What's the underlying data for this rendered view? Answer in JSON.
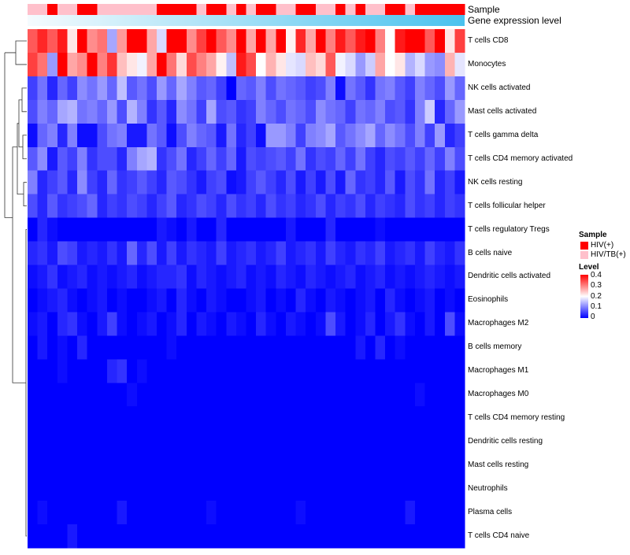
{
  "chart_data": {
    "type": "heatmap",
    "annotations": [
      {
        "label": "Sample"
      },
      {
        "label": "Gene expression level"
      }
    ],
    "rows": [
      "T cells CD8",
      "Monocytes",
      "NK cells activated",
      "Mast cells activated",
      "T cells gamma delta",
      "T cells CD4 memory activated",
      "NK cells resting",
      "T cells follicular helper",
      "T cells regulatory  Tregs",
      "B cells naive",
      "Dendritic cells activated",
      "Eosinophils",
      "Macrophages M2",
      "B cells memory",
      "Macrophages M1",
      "Macrophages M0",
      "T cells CD4 memory resting",
      "Dendritic cells resting",
      "Mast cells resting",
      "Neutrophils",
      "Plasma cells",
      "T cells CD4 naive"
    ],
    "sample_groups": [
      "HIV/TB(+)",
      "HIV/TB(+)",
      "HIV(+)",
      "HIV/TB(+)",
      "HIV/TB(+)",
      "HIV(+)",
      "HIV(+)",
      "HIV/TB(+)",
      "HIV/TB(+)",
      "HIV/TB(+)",
      "HIV/TB(+)",
      "HIV/TB(+)",
      "HIV/TB(+)",
      "HIV(+)",
      "HIV(+)",
      "HIV(+)",
      "HIV(+)",
      "HIV/TB(+)",
      "HIV(+)",
      "HIV(+)",
      "HIV/TB(+)",
      "HIV(+)",
      "HIV/TB(+)",
      "HIV(+)",
      "HIV(+)",
      "HIV/TB(+)",
      "HIV/TB(+)",
      "HIV(+)",
      "HIV(+)",
      "HIV/TB(+)",
      "HIV/TB(+)",
      "HIV(+)",
      "HIV/TB(+)",
      "HIV(+)",
      "HIV/TB(+)",
      "HIV/TB(+)",
      "HIV(+)",
      "HIV(+)",
      "HIV/TB(+)",
      "HIV(+)",
      "HIV(+)",
      "HIV(+)",
      "HIV(+)",
      "HIV(+)"
    ],
    "values": [
      [
        0.33,
        0.37,
        0.33,
        0.38,
        0.22,
        0.42,
        0.29,
        0.31,
        0.13,
        0.28,
        0.4,
        0.4,
        0.27,
        0.17,
        0.4,
        0.43,
        0.29,
        0.35,
        0.42,
        0.33,
        0.29,
        0.41,
        0.27,
        0.4,
        0.27,
        0.44,
        0.21,
        0.37,
        0.27,
        0.4,
        0.3,
        0.38,
        0.33,
        0.38,
        0.43,
        0.3,
        0.2,
        0.38,
        0.44,
        0.4,
        0.33,
        0.4,
        0.22,
        0.35
      ],
      [
        0.35,
        0.31,
        0.12,
        0.43,
        0.27,
        0.29,
        0.42,
        0.3,
        0.36,
        0.25,
        0.22,
        0.19,
        0.27,
        0.4,
        0.31,
        0.23,
        0.34,
        0.3,
        0.27,
        0.21,
        0.15,
        0.38,
        0.34,
        0.2,
        0.26,
        0.22,
        0.18,
        0.17,
        0.25,
        0.23,
        0.33,
        0.19,
        0.17,
        0.12,
        0.16,
        0.27,
        0.2,
        0.22,
        0.14,
        0.17,
        0.12,
        0.11,
        0.26,
        0.18
      ],
      [
        0.05,
        0.09,
        0.03,
        0.08,
        0.05,
        0.11,
        0.09,
        0.12,
        0.08,
        0.15,
        0.07,
        0.09,
        0.06,
        0.12,
        0.08,
        0.13,
        0.1,
        0.07,
        0.08,
        0.05,
        0.0,
        0.08,
        0.07,
        0.1,
        0.06,
        0.09,
        0.08,
        0.07,
        0.05,
        0.06,
        0.1,
        0.01,
        0.09,
        0.07,
        0.04,
        0.09,
        0.1,
        0.07,
        0.05,
        0.1,
        0.08,
        0.06,
        0.12,
        0.08
      ],
      [
        0.06,
        0.1,
        0.08,
        0.13,
        0.14,
        0.09,
        0.1,
        0.08,
        0.12,
        0.06,
        0.14,
        0.1,
        0.04,
        0.07,
        0.03,
        0.11,
        0.09,
        0.05,
        0.13,
        0.06,
        0.07,
        0.04,
        0.05,
        0.1,
        0.08,
        0.06,
        0.09,
        0.08,
        0.06,
        0.11,
        0.09,
        0.08,
        0.05,
        0.09,
        0.08,
        0.1,
        0.06,
        0.07,
        0.04,
        0.1,
        0.16,
        0.03,
        0.08,
        0.12
      ],
      [
        0.01,
        0.08,
        0.1,
        0.03,
        0.1,
        0.01,
        0.01,
        0.06,
        0.09,
        0.1,
        0.02,
        0.02,
        0.09,
        0.07,
        0.01,
        0.06,
        0.1,
        0.08,
        0.07,
        0.02,
        0.09,
        0.03,
        0.05,
        0.01,
        0.12,
        0.12,
        0.1,
        0.05,
        0.1,
        0.11,
        0.13,
        0.07,
        0.09,
        0.11,
        0.13,
        0.08,
        0.11,
        0.09,
        0.06,
        0.1,
        0.05,
        0.12,
        0.03,
        0.05
      ],
      [
        0.07,
        0.11,
        0.02,
        0.07,
        0.05,
        0.1,
        0.04,
        0.06,
        0.06,
        0.03,
        0.1,
        0.13,
        0.14,
        0.04,
        0.06,
        0.09,
        0.03,
        0.05,
        0.08,
        0.05,
        0.08,
        0.02,
        0.06,
        0.05,
        0.06,
        0.07,
        0.05,
        0.09,
        0.04,
        0.06,
        0.05,
        0.08,
        0.05,
        0.09,
        0.05,
        0.03,
        0.06,
        0.05,
        0.07,
        0.05,
        0.08,
        0.05,
        0.1,
        0.06
      ],
      [
        0.1,
        0.03,
        0.05,
        0.07,
        0.03,
        0.11,
        0.05,
        0.03,
        0.08,
        0.04,
        0.05,
        0.07,
        0.05,
        0.03,
        0.07,
        0.06,
        0.04,
        0.02,
        0.05,
        0.06,
        0.01,
        0.02,
        0.05,
        0.07,
        0.05,
        0.03,
        0.06,
        0.02,
        0.05,
        0.02,
        0.06,
        0.02,
        0.08,
        0.04,
        0.05,
        0.03,
        0.07,
        0.02,
        0.06,
        0.04,
        0.09,
        0.03,
        0.05,
        0.02
      ],
      [
        0.06,
        0.03,
        0.07,
        0.04,
        0.05,
        0.06,
        0.08,
        0.03,
        0.05,
        0.04,
        0.06,
        0.05,
        0.03,
        0.05,
        0.07,
        0.03,
        0.04,
        0.06,
        0.05,
        0.03,
        0.06,
        0.04,
        0.05,
        0.03,
        0.06,
        0.04,
        0.05,
        0.03,
        0.04,
        0.06,
        0.03,
        0.05,
        0.04,
        0.06,
        0.03,
        0.05,
        0.04,
        0.03,
        0.06,
        0.04,
        0.05,
        0.03,
        0.05,
        0.04
      ],
      [
        0.0,
        0.03,
        0.01,
        0.0,
        0.0,
        0.0,
        0.0,
        0.0,
        0.0,
        0.0,
        0.0,
        0.0,
        0.0,
        0.02,
        0.01,
        0.0,
        0.02,
        0.0,
        0.0,
        0.03,
        0.0,
        0.0,
        0.0,
        0.0,
        0.0,
        0.0,
        0.02,
        0.0,
        0.0,
        0.0,
        0.03,
        0.0,
        0.0,
        0.0,
        0.0,
        0.01,
        0.0,
        0.0,
        0.0,
        0.0,
        0.0,
        0.0,
        0.0,
        0.0
      ],
      [
        0.03,
        0.04,
        0.02,
        0.06,
        0.05,
        0.02,
        0.03,
        0.02,
        0.04,
        0.02,
        0.08,
        0.03,
        0.06,
        0.02,
        0.05,
        0.02,
        0.04,
        0.03,
        0.02,
        0.05,
        0.02,
        0.03,
        0.04,
        0.02,
        0.03,
        0.05,
        0.02,
        0.03,
        0.04,
        0.02,
        0.05,
        0.03,
        0.02,
        0.04,
        0.03,
        0.05,
        0.02,
        0.03,
        0.04,
        0.02,
        0.05,
        0.03,
        0.02,
        0.04
      ],
      [
        0.01,
        0.02,
        0.04,
        0.01,
        0.02,
        0.03,
        0.01,
        0.02,
        0.01,
        0.02,
        0.03,
        0.01,
        0.02,
        0.03,
        0.03,
        0.04,
        0.01,
        0.03,
        0.02,
        0.01,
        0.02,
        0.03,
        0.01,
        0.02,
        0.01,
        0.03,
        0.02,
        0.01,
        0.03,
        0.02,
        0.01,
        0.02,
        0.03,
        0.01,
        0.02,
        0.03,
        0.01,
        0.02,
        0.01,
        0.02,
        0.03,
        0.02,
        0.01,
        0.02
      ],
      [
        0.0,
        0.01,
        0.02,
        0.03,
        0.01,
        0.0,
        0.01,
        0.02,
        0.0,
        0.01,
        0.0,
        0.0,
        0.01,
        0.02,
        0.0,
        0.03,
        0.01,
        0.0,
        0.02,
        0.01,
        0.0,
        0.0,
        0.01,
        0.02,
        0.0,
        0.01,
        0.0,
        0.03,
        0.01,
        0.0,
        0.02,
        0.01,
        0.0,
        0.01,
        0.02,
        0.0,
        0.03,
        0.01,
        0.0,
        0.01,
        0.02,
        0.0,
        0.01,
        0.0
      ],
      [
        0.01,
        0.02,
        0.0,
        0.03,
        0.04,
        0.01,
        0.0,
        0.02,
        0.05,
        0.01,
        0.0,
        0.01,
        0.02,
        0.0,
        0.01,
        0.03,
        0.0,
        0.02,
        0.01,
        0.0,
        0.02,
        0.01,
        0.0,
        0.03,
        0.01,
        0.0,
        0.02,
        0.01,
        0.0,
        0.01,
        0.06,
        0.02,
        0.0,
        0.01,
        0.03,
        0.0,
        0.02,
        0.04,
        0.01,
        0.0,
        0.02,
        0.0,
        0.06,
        0.01
      ],
      [
        0.0,
        0.02,
        0.0,
        0.01,
        0.0,
        0.03,
        0.0,
        0.0,
        0.0,
        0.0,
        0.0,
        0.0,
        0.0,
        0.0,
        0.01,
        0.0,
        0.0,
        0.0,
        0.0,
        0.0,
        0.0,
        0.0,
        0.0,
        0.0,
        0.0,
        0.0,
        0.0,
        0.0,
        0.0,
        0.0,
        0.0,
        0.0,
        0.0,
        0.02,
        0.0,
        0.03,
        0.0,
        0.01,
        0.0,
        0.0,
        0.0,
        0.0,
        0.0,
        0.0
      ],
      [
        0.0,
        0.0,
        0.0,
        0.01,
        0.0,
        0.0,
        0.0,
        0.0,
        0.03,
        0.04,
        0.0,
        0.01,
        0.0,
        0.0,
        0.0,
        0.0,
        0.0,
        0.0,
        0.0,
        0.0,
        0.0,
        0.0,
        0.0,
        0.0,
        0.0,
        0.0,
        0.0,
        0.0,
        0.0,
        0.0,
        0.0,
        0.0,
        0.0,
        0.0,
        0.0,
        0.0,
        0.0,
        0.0,
        0.0,
        0.0,
        0.0,
        0.0,
        0.0,
        0.0
      ],
      [
        0.0,
        0.0,
        0.0,
        0.0,
        0.0,
        0.0,
        0.0,
        0.0,
        0.0,
        0.0,
        0.01,
        0.0,
        0.0,
        0.0,
        0.0,
        0.0,
        0.0,
        0.0,
        0.0,
        0.0,
        0.0,
        0.0,
        0.0,
        0.0,
        0.0,
        0.0,
        0.0,
        0.0,
        0.0,
        0.0,
        0.0,
        0.0,
        0.0,
        0.0,
        0.0,
        0.0,
        0.0,
        0.0,
        0.0,
        0.01,
        0.0,
        0.0,
        0.0,
        0.0
      ],
      [
        0.0,
        0.0,
        0.0,
        0.0,
        0.0,
        0.0,
        0.0,
        0.0,
        0.0,
        0.0,
        0.0,
        0.0,
        0.0,
        0.0,
        0.0,
        0.0,
        0.0,
        0.0,
        0.0,
        0.0,
        0.0,
        0.0,
        0.0,
        0.0,
        0.0,
        0.0,
        0.0,
        0.0,
        0.0,
        0.0,
        0.0,
        0.0,
        0.0,
        0.0,
        0.0,
        0.0,
        0.0,
        0.0,
        0.0,
        0.0,
        0.0,
        0.0,
        0.0,
        0.0
      ],
      [
        0.0,
        0.0,
        0.0,
        0.0,
        0.0,
        0.0,
        0.0,
        0.0,
        0.0,
        0.0,
        0.0,
        0.0,
        0.0,
        0.0,
        0.0,
        0.0,
        0.0,
        0.0,
        0.0,
        0.0,
        0.0,
        0.0,
        0.0,
        0.0,
        0.0,
        0.0,
        0.0,
        0.0,
        0.0,
        0.0,
        0.0,
        0.0,
        0.0,
        0.0,
        0.0,
        0.0,
        0.0,
        0.0,
        0.0,
        0.0,
        0.0,
        0.0,
        0.0,
        0.0
      ],
      [
        0.0,
        0.0,
        0.0,
        0.0,
        0.0,
        0.0,
        0.0,
        0.0,
        0.0,
        0.0,
        0.0,
        0.0,
        0.0,
        0.0,
        0.0,
        0.0,
        0.0,
        0.0,
        0.0,
        0.0,
        0.0,
        0.0,
        0.0,
        0.0,
        0.0,
        0.0,
        0.0,
        0.0,
        0.0,
        0.0,
        0.0,
        0.0,
        0.0,
        0.0,
        0.0,
        0.0,
        0.0,
        0.0,
        0.0,
        0.0,
        0.0,
        0.0,
        0.0,
        0.0
      ],
      [
        0.0,
        0.0,
        0.0,
        0.0,
        0.0,
        0.0,
        0.0,
        0.0,
        0.0,
        0.0,
        0.0,
        0.0,
        0.0,
        0.0,
        0.0,
        0.0,
        0.0,
        0.0,
        0.0,
        0.0,
        0.0,
        0.0,
        0.0,
        0.0,
        0.0,
        0.0,
        0.0,
        0.0,
        0.0,
        0.0,
        0.0,
        0.0,
        0.0,
        0.0,
        0.0,
        0.0,
        0.0,
        0.0,
        0.0,
        0.0,
        0.0,
        0.0,
        0.0,
        0.0
      ],
      [
        0.0,
        0.01,
        0.0,
        0.0,
        0.0,
        0.0,
        0.0,
        0.0,
        0.0,
        0.02,
        0.0,
        0.0,
        0.0,
        0.0,
        0.0,
        0.0,
        0.0,
        0.0,
        0.01,
        0.0,
        0.0,
        0.0,
        0.0,
        0.0,
        0.0,
        0.0,
        0.0,
        0.01,
        0.0,
        0.0,
        0.0,
        0.0,
        0.0,
        0.0,
        0.0,
        0.0,
        0.0,
        0.0,
        0.02,
        0.0,
        0.0,
        0.0,
        0.0,
        0.0
      ],
      [
        0.0,
        0.0,
        0.0,
        0.0,
        0.02,
        0.0,
        0.0,
        0.0,
        0.0,
        0.0,
        0.0,
        0.0,
        0.0,
        0.0,
        0.0,
        0.0,
        0.0,
        0.0,
        0.0,
        0.0,
        0.0,
        0.0,
        0.0,
        0.0,
        0.0,
        0.0,
        0.0,
        0.0,
        0.0,
        0.0,
        0.0,
        0.0,
        0.0,
        0.0,
        0.0,
        0.0,
        0.0,
        0.0,
        0.0,
        0.0,
        0.0,
        0.0,
        0.0,
        0.0
      ]
    ],
    "color_scale": {
      "min": 0,
      "mid": 0.2,
      "max": 0.4,
      "low_color": "#0000FF",
      "mid_color": "#ffffff",
      "high_color": "#FF0000"
    },
    "sample_legend": {
      "title": "Sample",
      "entries": [
        {
          "label": "HIV(+)",
          "color": "#ff0000"
        },
        {
          "label": "HIV/TB(+)",
          "color": "#ffc0cb"
        }
      ]
    },
    "level_legend": {
      "title": "Level",
      "ticks": [
        "0.4",
        "0.3",
        "0.2",
        "0.1",
        "0"
      ]
    },
    "expression_bar": {
      "start_color": "#f5fbfe",
      "end_color": "#4ac2ee"
    }
  }
}
